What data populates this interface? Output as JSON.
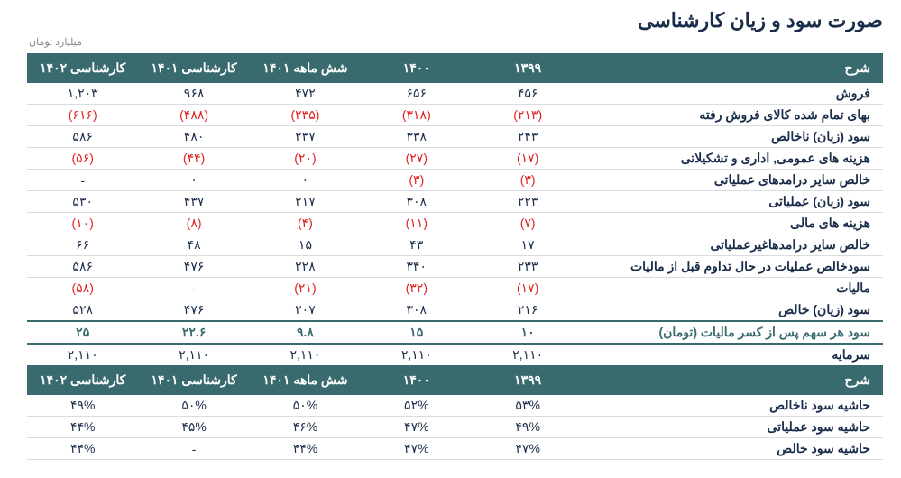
{
  "title": "صورت سود و زیان کارشناسی",
  "unit": "میلیارد تومان",
  "headers": [
    "شرح",
    "۱۳۹۹",
    "۱۴۰۰",
    "شش ماهه ۱۴۰۱",
    "کارشناسی ۱۴۰۱",
    "کارشناسی ۱۴۰۲"
  ],
  "rows1": [
    {
      "label": "فروش",
      "v": [
        "۴۵۶",
        "۶۵۶",
        "۴۷۲",
        "۹۶۸",
        "۱,۲۰۳"
      ],
      "neg": false
    },
    {
      "label": "بهای تمام شده کالای فروش رفته",
      "v": [
        "(۲۱۳)",
        "(۳۱۸)",
        "(۲۳۵)",
        "(۴۸۸)",
        "(۶۱۶)"
      ],
      "neg": true
    },
    {
      "label": "سود (زیان) ناخالص",
      "v": [
        "۲۴۳",
        "۳۳۸",
        "۲۳۷",
        "۴۸۰",
        "۵۸۶"
      ],
      "neg": false
    },
    {
      "label": "هزینه های عمومی, اداری و تشکیلاتی",
      "v": [
        "(۱۷)",
        "(۲۷)",
        "(۲۰)",
        "(۴۴)",
        "(۵۶)"
      ],
      "neg": true
    },
    {
      "label": "خالص سایر درامدهای  عملیاتی",
      "v": [
        "(۳)",
        "(۳)",
        "۰",
        "۰",
        "-"
      ],
      "neg": true,
      "negmask": [
        true,
        true,
        false,
        false,
        false
      ]
    },
    {
      "label": "سود (زیان) عملیاتی",
      "v": [
        "۲۲۳",
        "۳۰۸",
        "۲۱۷",
        "۴۳۷",
        "۵۳۰"
      ],
      "neg": false
    },
    {
      "label": "هزینه های مالی",
      "v": [
        "(۷)",
        "(۱۱)",
        "(۴)",
        "(۸)",
        "(۱۰)"
      ],
      "neg": true
    },
    {
      "label": "خالص سایر درامدهاغیرعملیاتی",
      "v": [
        "۱۷",
        "۴۳",
        "۱۵",
        "۴۸",
        "۶۶"
      ],
      "neg": false
    },
    {
      "label": "سودخالص عملیات در حال تداوم قبل از مالیات",
      "v": [
        "۲۳۳",
        "۳۴۰",
        "۲۲۸",
        "۴۷۶",
        "۵۸۶"
      ],
      "neg": false
    },
    {
      "label": "مالیات",
      "v": [
        "(۱۷)",
        "(۳۲)",
        "(۲۱)",
        "-",
        "(۵۸)"
      ],
      "neg": true,
      "negmask": [
        true,
        true,
        true,
        false,
        true
      ]
    },
    {
      "label": "سود (زیان) خالص",
      "v": [
        "۲۱۶",
        "۳۰۸",
        "۲۰۷",
        "۴۷۶",
        "۵۲۸"
      ],
      "neg": false
    },
    {
      "label": "سود هر سهم پس از کسر مالیات (تومان)",
      "v": [
        "۱۰",
        "۱۵",
        "۹.۸",
        "۲۲.۶",
        "۲۵"
      ],
      "neg": false,
      "bold": true
    },
    {
      "label": "سرمایه",
      "v": [
        "۲,۱۱۰",
        "۲,۱۱۰",
        "۲,۱۱۰",
        "۲,۱۱۰",
        "۲,۱۱۰"
      ],
      "neg": false,
      "noborder": true
    }
  ],
  "rows2": [
    {
      "label": "حاشیه سود ناخالص",
      "v": [
        "۵۳%",
        "۵۲%",
        "۵۰%",
        "۵۰%",
        "۴۹%"
      ],
      "neg": false
    },
    {
      "label": "حاشیه سود عملیاتی",
      "v": [
        "۴۹%",
        "۴۷%",
        "۴۶%",
        "۴۵%",
        "۴۴%"
      ],
      "neg": false
    },
    {
      "label": "حاشیه سود خالص",
      "v": [
        "۴۷%",
        "۴۷%",
        "۴۴%",
        "-",
        "۴۴%"
      ],
      "neg": false
    }
  ],
  "colors": {
    "header_bg": "#396a6e",
    "header_fg": "#ffffff",
    "text": "#1a2d4a",
    "negative": "#e02020",
    "border": "#d9dde0",
    "unit": "#888888"
  }
}
